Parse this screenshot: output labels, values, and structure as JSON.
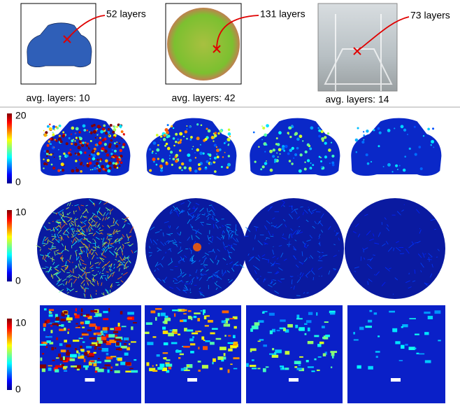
{
  "top_row": [
    {
      "callout": "52 layers",
      "caption": "avg. layers: 10"
    },
    {
      "callout": "131 layers",
      "caption": "avg. layers: 42"
    },
    {
      "callout": "73 layers",
      "caption": "avg. layers: 14"
    }
  ],
  "heatmap_rows": [
    {
      "colorbar_max": 20,
      "colorbar_min": 0
    },
    {
      "colorbar_max": 10,
      "colorbar_min": 0
    },
    {
      "colorbar_max": 10,
      "colorbar_min": 0
    }
  ]
}
